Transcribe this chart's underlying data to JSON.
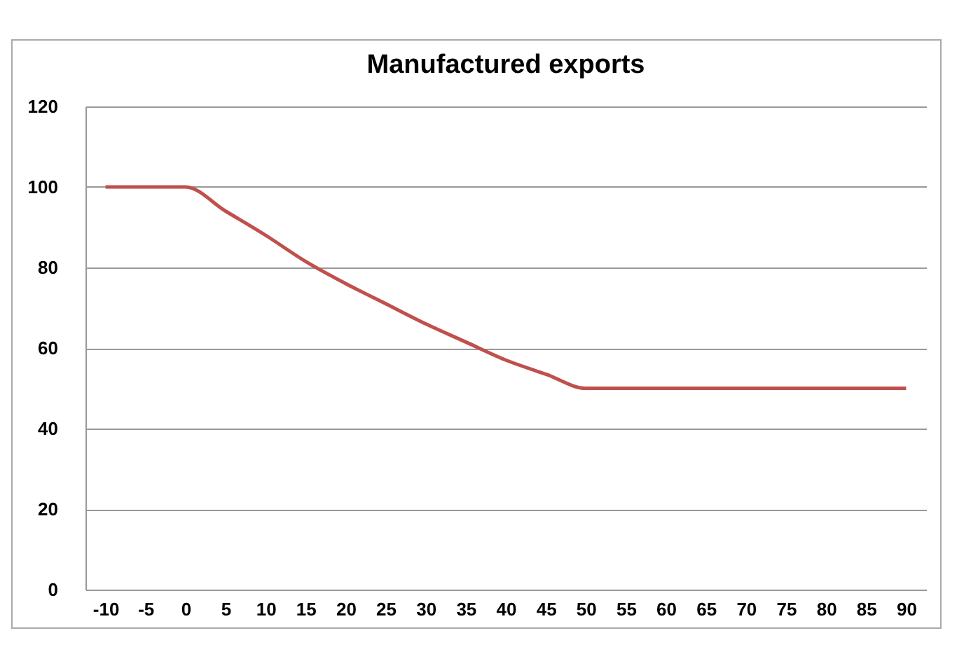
{
  "chart_data": {
    "type": "line",
    "title": "Manufactured exports",
    "categories": [
      "-10",
      "-5",
      "0",
      "5",
      "10",
      "15",
      "20",
      "25",
      "30",
      "35",
      "40",
      "45",
      "50",
      "55",
      "60",
      "65",
      "70",
      "75",
      "80",
      "85",
      "90"
    ],
    "series": [
      {
        "color": "#c0504d",
        "values": [
          100,
          100,
          100,
          94,
          88,
          81.5,
          76,
          71,
          66,
          61.5,
          57,
          53.5,
          50,
          50,
          50,
          50,
          50,
          50,
          50,
          50,
          50
        ]
      }
    ],
    "ylim": [
      0,
      120
    ],
    "yticks": [
      0,
      20,
      40,
      60,
      80,
      100,
      120
    ],
    "grid": "y",
    "marker": "none",
    "line_style": "solid"
  }
}
